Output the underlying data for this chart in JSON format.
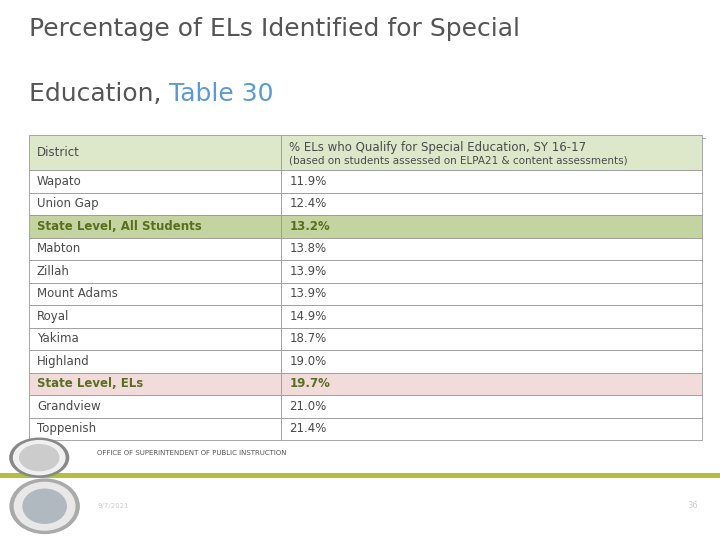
{
  "title_line1": "Percentage of ELs Identified for Special",
  "title_line2_p1": "Education, ",
  "title_line2_p2": "Table 30",
  "title_color1": "#555555",
  "title_color2": "#5b9bd5",
  "header_col1": "District",
  "header_col2_line1": "% ELs who Qualify for Special Education, SY 16-17",
  "header_col2_line2": "(based on students assessed on ELPA21 & content assessments)",
  "rows": [
    {
      "district": "Wapato",
      "value": "11.9%",
      "highlight": "none"
    },
    {
      "district": "Union Gap",
      "value": "12.4%",
      "highlight": "none"
    },
    {
      "district": "State Level, All Students",
      "value": "13.2%",
      "highlight": "green"
    },
    {
      "district": "Mabton",
      "value": "13.8%",
      "highlight": "none"
    },
    {
      "district": "Zillah",
      "value": "13.9%",
      "highlight": "none"
    },
    {
      "district": "Mount Adams",
      "value": "13.9%",
      "highlight": "none"
    },
    {
      "district": "Royal",
      "value": "14.9%",
      "highlight": "none"
    },
    {
      "district": "Yakima",
      "value": "18.7%",
      "highlight": "none"
    },
    {
      "district": "Highland",
      "value": "19.0%",
      "highlight": "none"
    },
    {
      "district": "State Level, ELs",
      "value": "19.7%",
      "highlight": "pink"
    },
    {
      "district": "Grandview",
      "value": "21.0%",
      "highlight": "none"
    },
    {
      "district": "Toppenish",
      "value": "21.4%",
      "highlight": "none"
    }
  ],
  "header_bg": "#dde8cb",
  "green_highlight": "#c4d4a0",
  "pink_highlight": "#f2dcdb",
  "border_color": "#999999",
  "bg_color": "#ffffff",
  "footer_white_bg": "#ffffff",
  "footer_olive_bar": "#b5bd3c",
  "footer_teal_bg": "#2e6580",
  "footer_text": "OFFICE OF SUPERINTENDENT OF PUBLIC INSTRUCTION",
  "footer_date": "9/7/2021",
  "footer_page": "36",
  "title_fontsize": 18,
  "table_fontsize": 8.5,
  "header_fontsize": 8.5,
  "col_split": 0.375
}
